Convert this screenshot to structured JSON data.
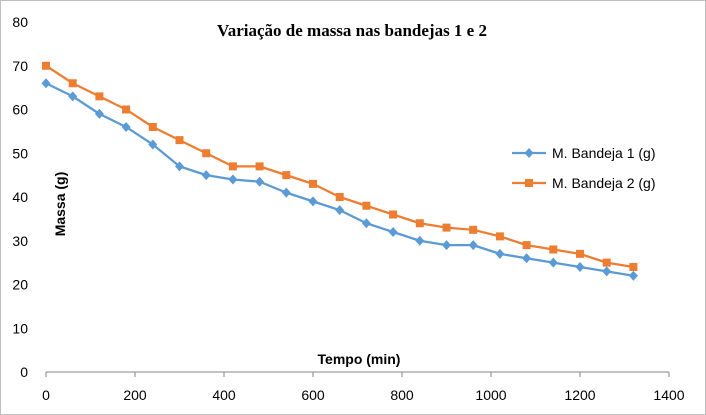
{
  "chart_data": {
    "type": "line",
    "title": "Variação de massa nas bandejas 1 e 2",
    "xlabel": "Tempo (min)",
    "ylabel": "Massa (g)",
    "xlim": [
      0,
      1400
    ],
    "ylim": [
      0,
      80
    ],
    "xticks": [
      0,
      200,
      400,
      600,
      800,
      1000,
      1200,
      1400
    ],
    "yticks": [
      0,
      10,
      20,
      30,
      40,
      50,
      60,
      70,
      80
    ],
    "grid": false,
    "legend_position": "right",
    "x": [
      0,
      60,
      120,
      180,
      240,
      300,
      360,
      420,
      480,
      540,
      600,
      660,
      720,
      780,
      840,
      900,
      960,
      1020,
      1080,
      1140,
      1200,
      1260,
      1320
    ],
    "series": [
      {
        "name": "M. Bandeja 1 (g)",
        "color": "#5b9bd5",
        "marker": "diamond",
        "values": [
          66,
          63,
          59,
          56,
          52,
          47,
          45,
          44,
          43.5,
          41,
          39,
          37,
          34,
          32,
          30,
          29,
          29,
          27,
          26,
          25,
          24,
          23,
          22
        ]
      },
      {
        "name": "M. Bandeja 2 (g)",
        "color": "#ed7d31",
        "marker": "square",
        "values": [
          70,
          66,
          63,
          60,
          56,
          53,
          50,
          47,
          47,
          45,
          43,
          40,
          38,
          36,
          34,
          33,
          32.5,
          31,
          29,
          28,
          27,
          25,
          24
        ]
      }
    ]
  }
}
